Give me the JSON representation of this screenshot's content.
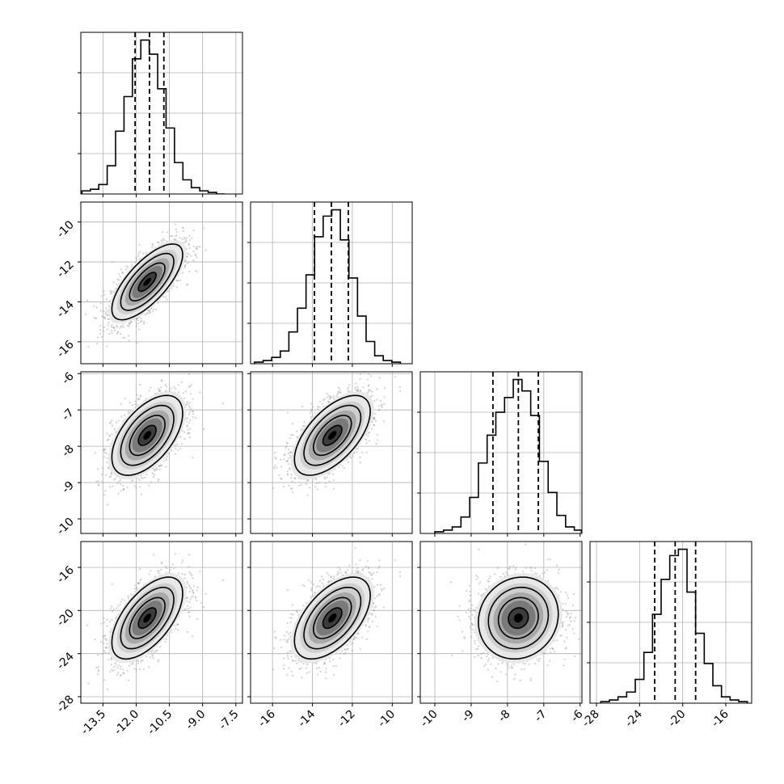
{
  "chart_data": {
    "type": "corner",
    "grid": true,
    "ndim": 4,
    "quantile_lines": "dashed",
    "parameters": [
      {
        "range": [
          -14.5,
          -7.2
        ],
        "ticks": [
          "-13.5",
          "-12.0",
          "-10.5",
          "-9.0",
          "-7.5"
        ],
        "tick_values": [
          -13.5,
          -12.0,
          -10.5,
          -9.0,
          -7.5
        ],
        "quantiles": [
          -12.05,
          -11.4,
          -10.75
        ],
        "hist_bin_edges": [
          -14.45,
          -14.07,
          -13.69,
          -13.31,
          -12.93,
          -12.55,
          -12.17,
          -11.79,
          -11.41,
          -11.03,
          -10.65,
          -10.27,
          -9.89,
          -9.51,
          -9.13,
          -8.75,
          -8.37,
          -7.99
        ],
        "hist_counts": [
          0.02,
          0.03,
          0.06,
          0.18,
          0.4,
          0.62,
          0.86,
          0.98,
          0.89,
          0.67,
          0.42,
          0.2,
          0.09,
          0.04,
          0.02,
          0.01,
          0.0
        ]
      },
      {
        "range": [
          -17.1,
          -9.0
        ],
        "ticks": [
          "-16",
          "-14",
          "-12",
          "-10"
        ],
        "tick_values": [
          -16,
          -14,
          -12,
          -10
        ],
        "quantiles": [
          -13.9,
          -13.05,
          -12.2
        ],
        "hist_bin_edges": [
          -16.9,
          -16.47,
          -16.04,
          -15.61,
          -15.18,
          -14.75,
          -14.32,
          -13.89,
          -13.46,
          -13.03,
          -12.6,
          -12.17,
          -11.74,
          -11.31,
          -10.88,
          -10.45,
          -10.02,
          -9.59
        ],
        "hist_counts": [
          0.01,
          0.02,
          0.04,
          0.08,
          0.2,
          0.35,
          0.56,
          0.8,
          0.93,
          0.97,
          0.78,
          0.54,
          0.3,
          0.14,
          0.05,
          0.02,
          0.01
        ]
      },
      {
        "range": [
          -10.4,
          -5.95
        ],
        "ticks": [
          "-10",
          "-9",
          "-8",
          "-7",
          "-6"
        ],
        "tick_values": [
          -10,
          -9,
          -8,
          -7,
          -6
        ],
        "quantiles": [
          -8.4,
          -7.7,
          -7.15
        ],
        "hist_bin_edges": [
          -10.0,
          -9.76,
          -9.52,
          -9.28,
          -9.04,
          -8.8,
          -8.56,
          -8.32,
          -8.08,
          -7.84,
          -7.6,
          -7.36,
          -7.12,
          -6.88,
          -6.64,
          -6.4,
          -6.16,
          -5.96
        ],
        "hist_counts": [
          0.01,
          0.02,
          0.04,
          0.1,
          0.22,
          0.43,
          0.6,
          0.74,
          0.83,
          0.94,
          0.87,
          0.72,
          0.44,
          0.25,
          0.11,
          0.04,
          0.02
        ]
      },
      {
        "range": [
          -28.6,
          -13.6
        ],
        "ticks": [
          "-28",
          "-24",
          "-20",
          "-16"
        ],
        "tick_values": [
          -28,
          -24,
          -20,
          -16
        ],
        "quantiles": [
          -22.6,
          -20.7,
          -18.8
        ],
        "hist_bin_edges": [
          -27.6,
          -26.8,
          -26.0,
          -25.2,
          -24.4,
          -23.6,
          -22.8,
          -22.0,
          -21.2,
          -20.4,
          -19.6,
          -18.8,
          -18.0,
          -17.2,
          -16.4,
          -15.6,
          -14.8,
          -14.0
        ],
        "hist_counts": [
          0.01,
          0.02,
          0.04,
          0.07,
          0.15,
          0.32,
          0.56,
          0.78,
          0.93,
          0.97,
          0.7,
          0.44,
          0.25,
          0.11,
          0.04,
          0.02,
          0.01
        ]
      }
    ],
    "pairs": [
      {
        "x": 0,
        "y": 1,
        "mean": [
          -11.5,
          -13.0
        ],
        "sd": [
          0.8,
          0.95
        ],
        "corr": 0.72
      },
      {
        "x": 0,
        "y": 2,
        "mean": [
          -11.5,
          -7.7
        ],
        "sd": [
          0.8,
          0.55
        ],
        "corr": 0.55
      },
      {
        "x": 1,
        "y": 2,
        "mean": [
          -13.0,
          -7.7
        ],
        "sd": [
          0.95,
          0.55
        ],
        "corr": 0.6
      },
      {
        "x": 0,
        "y": 3,
        "mean": [
          -11.5,
          -20.7
        ],
        "sd": [
          0.8,
          1.9
        ],
        "corr": 0.6
      },
      {
        "x": 1,
        "y": 3,
        "mean": [
          -13.0,
          -20.7
        ],
        "sd": [
          0.95,
          1.9
        ],
        "corr": 0.55
      },
      {
        "x": 2,
        "y": 3,
        "mean": [
          -7.7,
          -20.7
        ],
        "sd": [
          0.55,
          1.9
        ],
        "corr": 0.1
      }
    ],
    "contour_levels_sigma": [
      0.5,
      1.0,
      1.5,
      2.0
    ],
    "colors": {
      "line": "#000000",
      "grid": "#b0b0b0",
      "points": "#9a9a9a"
    }
  }
}
